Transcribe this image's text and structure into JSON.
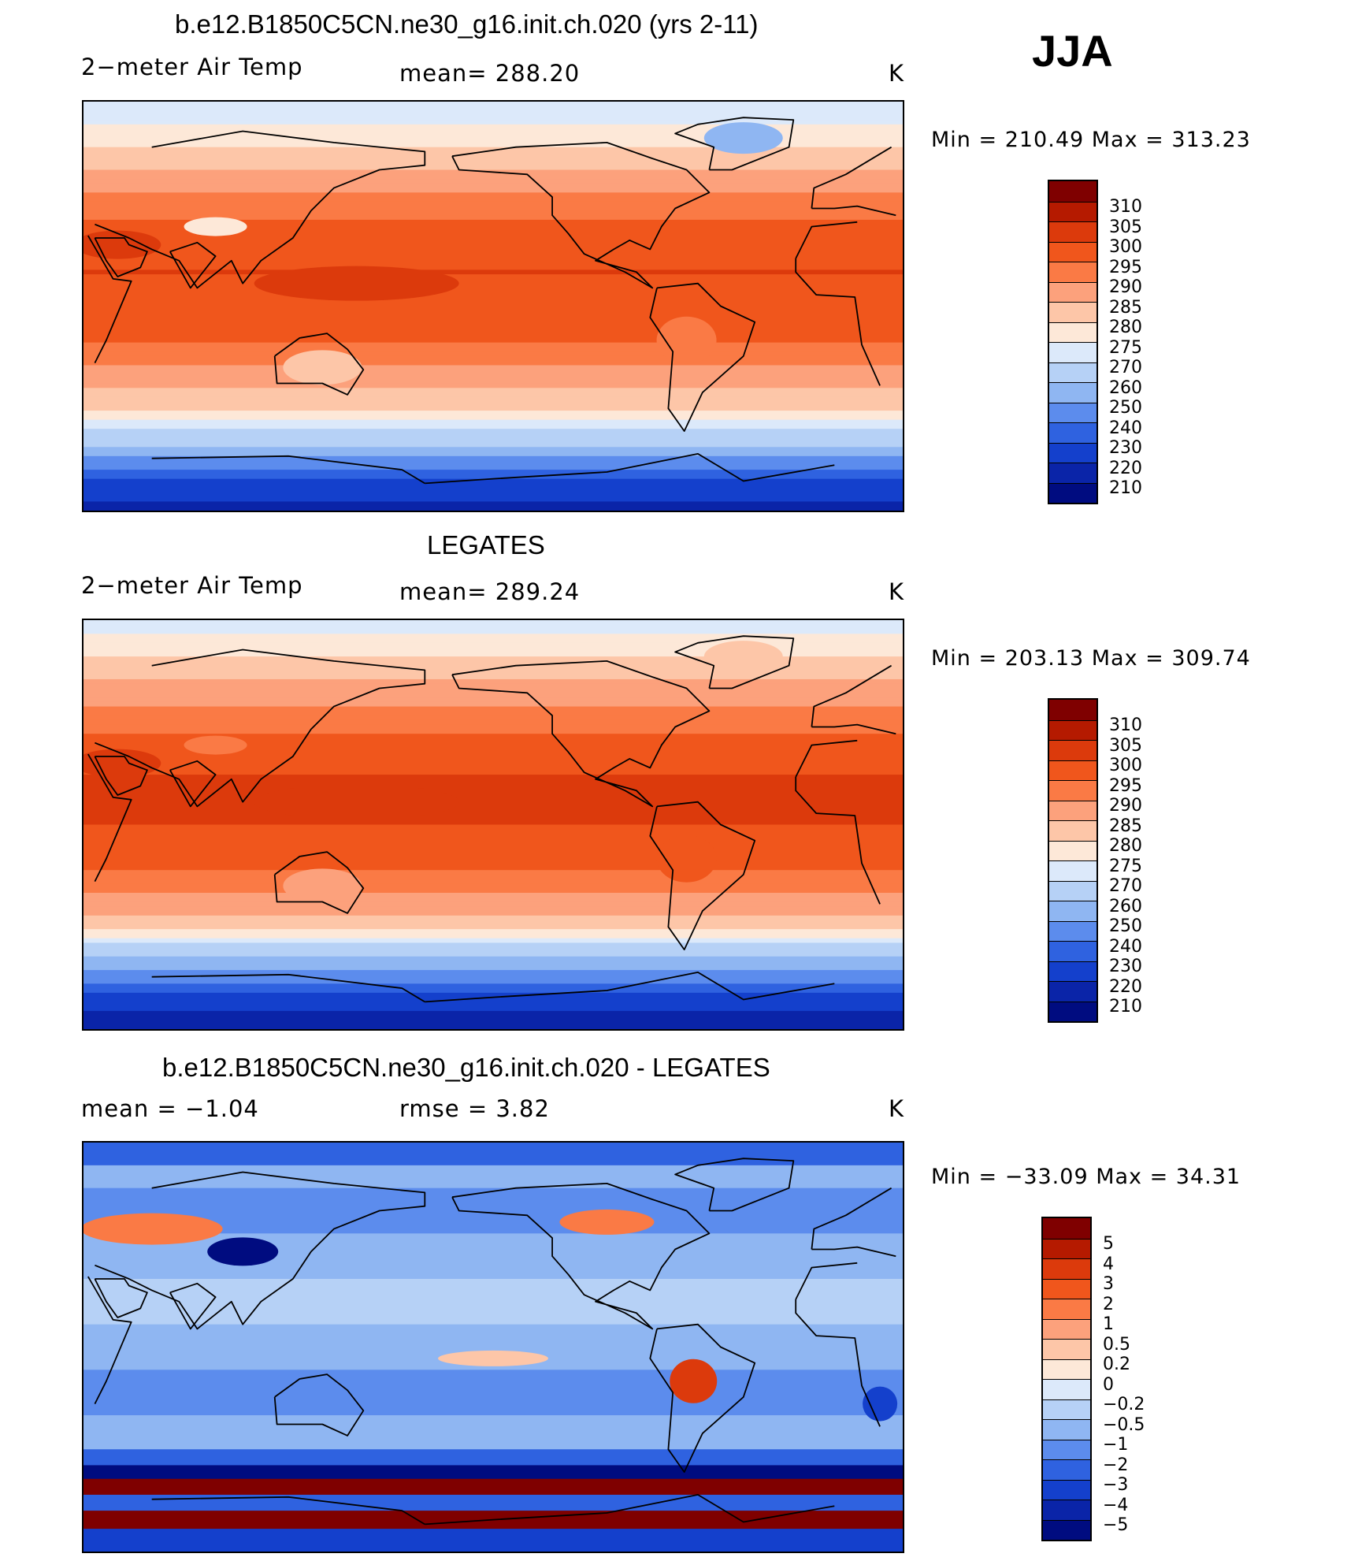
{
  "season": "JJA",
  "panels": [
    {
      "id": "model",
      "title": "b.e12.B1850C5CN.ne30_g16.init.ch.020 (yrs 2-11)",
      "left_label": "2−meter Air Temp",
      "center_label": "mean=  288.20",
      "units": "K",
      "minmax": "Min  =  210.49  Max  =  313.23"
    },
    {
      "id": "obs",
      "title": "LEGATES",
      "left_label": "2−meter Air Temp",
      "center_label": "mean=  289.24",
      "units": "K",
      "minmax": "Min  =  203.13  Max  =  309.74"
    },
    {
      "id": "diff",
      "title": "b.e12.B1850C5CN.ne30_g16.init.ch.020 - LEGATES",
      "left_label": "mean  =    −1.04",
      "center_label": "rmse  =     3.82",
      "units": "K",
      "minmax": "Min  =  −33.09  Max  =    34.31"
    }
  ],
  "chart_data": [
    {
      "type": "heatmap",
      "title": "b.e12.B1850C5CN.ne30_g16.init.ch.020 (yrs 2-11)",
      "variable": "2-meter Air Temp",
      "units": "K",
      "mean": 288.2,
      "min": 210.49,
      "max": 313.23,
      "contour_levels": [
        310,
        305,
        300,
        295,
        290,
        285,
        280,
        275,
        270,
        260,
        250,
        240,
        230,
        220,
        210
      ],
      "level_labels": [
        "310",
        "305",
        "300",
        "295",
        "290",
        "285",
        "280",
        "275",
        "270",
        "260",
        "250",
        "240",
        "230",
        "220",
        "210"
      ],
      "zonal_profile_K": [
        {
          "lat": 90,
          "value": 270
        },
        {
          "lat": 75,
          "value": 277
        },
        {
          "lat": 60,
          "value": 285
        },
        {
          "lat": 45,
          "value": 292
        },
        {
          "lat": 30,
          "value": 298
        },
        {
          "lat": 15,
          "value": 300
        },
        {
          "lat": 0,
          "value": 299
        },
        {
          "lat": -15,
          "value": 295
        },
        {
          "lat": -30,
          "value": 288
        },
        {
          "lat": -45,
          "value": 280
        },
        {
          "lat": -60,
          "value": 262
        },
        {
          "lat": -75,
          "value": 232
        },
        {
          "lat": -90,
          "value": 215
        }
      ]
    },
    {
      "type": "heatmap",
      "title": "LEGATES",
      "variable": "2-meter Air Temp",
      "units": "K",
      "mean": 289.24,
      "min": 203.13,
      "max": 309.74,
      "contour_levels": [
        310,
        305,
        300,
        295,
        290,
        285,
        280,
        275,
        270,
        260,
        250,
        240,
        230,
        220,
        210
      ],
      "level_labels": [
        "310",
        "305",
        "300",
        "295",
        "290",
        "285",
        "280",
        "275",
        "270",
        "260",
        "250",
        "240",
        "230",
        "220",
        "210"
      ],
      "zonal_profile_K": [
        {
          "lat": 90,
          "value": 272
        },
        {
          "lat": 75,
          "value": 279
        },
        {
          "lat": 60,
          "value": 287
        },
        {
          "lat": 45,
          "value": 293
        },
        {
          "lat": 30,
          "value": 299
        },
        {
          "lat": 15,
          "value": 301
        },
        {
          "lat": 0,
          "value": 300
        },
        {
          "lat": -15,
          "value": 297
        },
        {
          "lat": -30,
          "value": 290
        },
        {
          "lat": -45,
          "value": 283
        },
        {
          "lat": -60,
          "value": 258
        },
        {
          "lat": -75,
          "value": 228
        },
        {
          "lat": -90,
          "value": 212
        }
      ]
    },
    {
      "type": "heatmap",
      "title": "b.e12.B1850C5CN.ne30_g16.init.ch.020 - LEGATES",
      "variable": "2-meter Air Temp difference",
      "units": "K",
      "mean": -1.04,
      "rmse": 3.82,
      "min": -33.09,
      "max": 34.31,
      "contour_levels": [
        5,
        4,
        3,
        2,
        1,
        0.5,
        0.2,
        0,
        -0.2,
        -0.5,
        -1,
        -2,
        -3,
        -4,
        -5
      ],
      "level_labels": [
        "5",
        "4",
        "3",
        "2",
        "1",
        "0.5",
        "0.2",
        "0",
        "−0.2",
        "−0.5",
        "−1",
        "−2",
        "−3",
        "−4",
        "−5"
      ]
    }
  ],
  "colors": {
    "scale_top_to_bottom": [
      "#7f0000",
      "#b51a00",
      "#dc3a0c",
      "#f0561c",
      "#fa7a45",
      "#fca17c",
      "#fdc6a8",
      "#fde8d8",
      "#dce9fa",
      "#b6d1f6",
      "#8fb6f2",
      "#5c8ced",
      "#2f62e0",
      "#1440cc",
      "#0a24a8",
      "#000c80"
    ]
  }
}
